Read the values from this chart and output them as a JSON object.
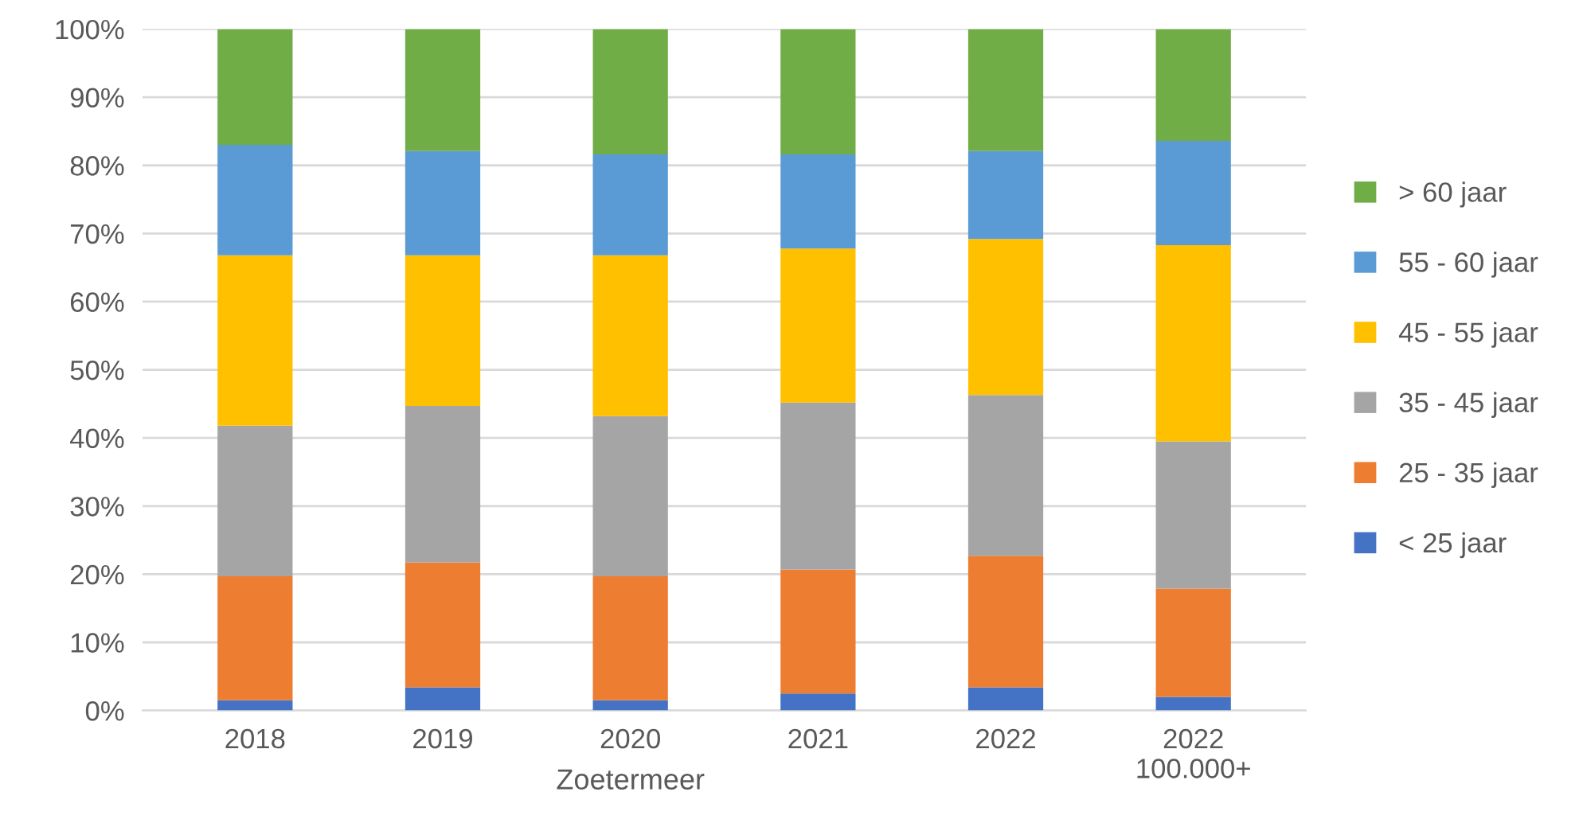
{
  "chart_data": {
    "type": "bar",
    "stacked": true,
    "xlabel": "Zoetermeer",
    "categories": [
      "2018",
      "2019",
      "2020",
      "2021",
      "2022",
      "2022\n100.000+"
    ],
    "series": [
      {
        "name": "< 25 jaar",
        "color": "#4472c4",
        "values": [
          1.5,
          3.4,
          1.5,
          2.5,
          3.4,
          2.0
        ]
      },
      {
        "name": "25 - 35 jaar",
        "color": "#ed7d31",
        "values": [
          18.2,
          18.3,
          18.2,
          18.2,
          19.3,
          15.9
        ]
      },
      {
        "name": "35 - 45 jaar",
        "color": "#a5a5a5",
        "values": [
          22.1,
          23.0,
          23.5,
          24.5,
          23.6,
          21.6
        ]
      },
      {
        "name": "45 - 55 jaar",
        "color": "#ffc000",
        "values": [
          25.0,
          22.1,
          23.6,
          22.6,
          22.9,
          28.8
        ]
      },
      {
        "name": "55 - 60 jaar",
        "color": "#5b9bd5",
        "values": [
          16.2,
          15.3,
          14.8,
          13.8,
          12.9,
          15.3
        ]
      },
      {
        "name": "> 60 jaar",
        "color": "#70ad47",
        "values": [
          17.0,
          17.9,
          18.4,
          18.4,
          17.9,
          16.4
        ]
      }
    ],
    "ylim": [
      0,
      100
    ],
    "yticks": [
      {
        "value": 0,
        "label": "0%"
      },
      {
        "value": 10,
        "label": "10%"
      },
      {
        "value": 20,
        "label": "20%"
      },
      {
        "value": 30,
        "label": "30%"
      },
      {
        "value": 40,
        "label": "40%"
      },
      {
        "value": 50,
        "label": "50%"
      },
      {
        "value": 60,
        "label": "60%"
      },
      {
        "value": 70,
        "label": "70%"
      },
      {
        "value": 80,
        "label": "80%"
      },
      {
        "value": 90,
        "label": "90%"
      },
      {
        "value": 100,
        "label": "100%"
      }
    ],
    "grid": "y",
    "legend": "right"
  }
}
